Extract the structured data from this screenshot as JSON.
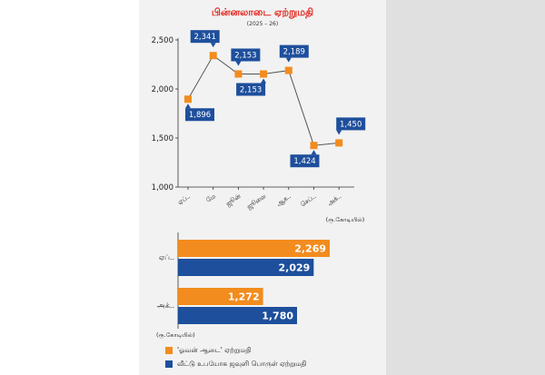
{
  "colors": {
    "orange": "#f28c1e",
    "blue": "#1e4f9c",
    "panel": "#f2f2f2",
    "title": "#e4261f"
  },
  "header": {
    "title": "பின்னலாடை ஏற்றுமதி",
    "subtitle": "(2025 – 26)"
  },
  "line_chart": {
    "unit_note": "(ரூ.கோடியில்)"
  },
  "bar_chart": {
    "unit_note": "(ரூ.கோடியில்)"
  },
  "legend": [
    {
      "label": "'ஓவன் ஆடை' ஏற்றுமதி",
      "color": "#f28c1e"
    },
    {
      "label": "வீட்டு உபயோக ஜவுளி பொருள் ஏற்றுமதி",
      "color": "#1e4f9c"
    }
  ],
  "chart_data": [
    {
      "type": "line",
      "categories": [
        "ஏப்..",
        "மே",
        "ஜூன்",
        "ஜூலை",
        "ஆக..",
        "செப்..",
        "அக்.."
      ],
      "values": [
        1896,
        2341,
        2153,
        2153,
        2189,
        1424,
        1450
      ],
      "value_labels": [
        "1,896",
        "2,341",
        "2,153",
        "2,153",
        "2,189",
        "1,424",
        "1,450"
      ],
      "ylim": [
        1000,
        2500
      ],
      "yticks": [
        1000,
        1500,
        2000,
        2500
      ],
      "ytick_labels": [
        "1,000",
        "1,500",
        "2,000",
        "2,500"
      ],
      "ylabel": "(ரூ.கோடியில்)"
    },
    {
      "type": "bar",
      "orientation": "horizontal",
      "categories": [
        "ஏப்..",
        "அக்.."
      ],
      "series": [
        {
          "name": "'ஓவன் ஆடை' ஏற்றுமதி",
          "values": [
            2269,
            1272
          ],
          "value_labels": [
            "2,269",
            "1,272"
          ],
          "color": "#f28c1e"
        },
        {
          "name": "வீட்டு உபயோக ஜவுளி பொருள் ஏற்றுமதி",
          "values": [
            2029,
            1780
          ],
          "value_labels": [
            "2,029",
            "1,780"
          ],
          "color": "#1e4f9c"
        }
      ],
      "note": "(ரூ.கோடியில்)"
    }
  ]
}
